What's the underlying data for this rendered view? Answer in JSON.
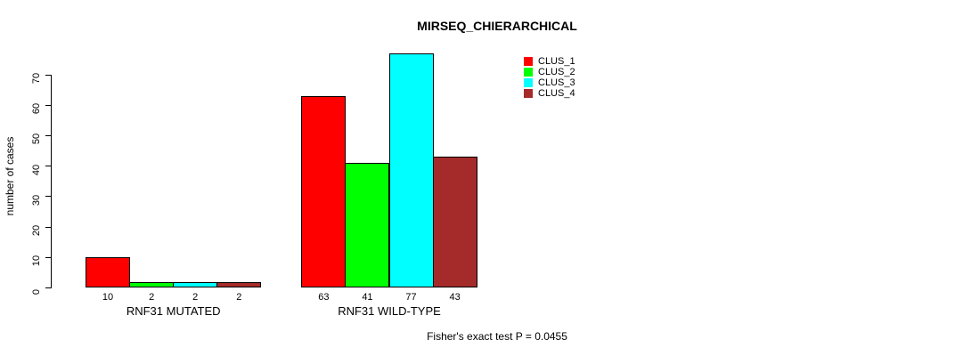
{
  "page": {
    "title": "MIRSEQ_CHIERARCHICAL",
    "footer_note": "Fisher's exact test P = 0.0455"
  },
  "chart_data": {
    "type": "bar",
    "title": "MIRSEQ_CHIERARCHICAL",
    "xlabel": "",
    "ylabel": "number of cases",
    "ylim": [
      0,
      70
    ],
    "yticks": [
      0,
      10,
      20,
      30,
      40,
      50,
      60,
      70
    ],
    "grid": false,
    "bar_value_labels": true,
    "legend_position": "top-right-outside",
    "categories": [
      "RNF31 MUTATED",
      "RNF31 WILD-TYPE"
    ],
    "series": [
      {
        "name": "CLUS_1",
        "color": "#ff0000",
        "values": [
          10,
          63
        ]
      },
      {
        "name": "CLUS_2",
        "color": "#00ff00",
        "values": [
          2,
          41
        ]
      },
      {
        "name": "CLUS_3",
        "color": "#00ffff",
        "values": [
          2,
          77
        ]
      },
      {
        "name": "CLUS_4",
        "color": "#a52a2a",
        "values": [
          2,
          43
        ]
      }
    ],
    "annotation": "Fisher's exact test P = 0.0455"
  }
}
